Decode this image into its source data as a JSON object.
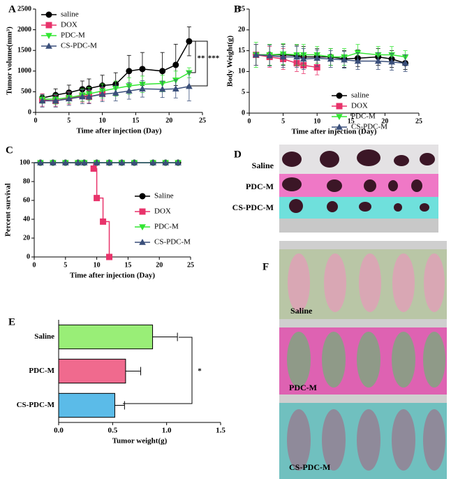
{
  "chart_data": [
    {
      "type": "line",
      "panel": "A",
      "xlabel": "Time after injection (Day)",
      "ylabel": "Tumor volume(mm³)",
      "x": [
        1,
        3,
        5,
        7,
        8,
        10,
        12,
        14,
        16,
        19,
        21,
        23
      ],
      "xlim": [
        0,
        25
      ],
      "xticks": [
        0,
        5,
        10,
        15,
        20,
        25
      ],
      "ylim": [
        0,
        2500
      ],
      "yticks": [
        0,
        500,
        1000,
        1500,
        2000,
        2500
      ],
      "legend": "upper left",
      "annotations": [
        "**",
        "***"
      ],
      "series": [
        {
          "name": "saline",
          "color": "#000000",
          "marker": "circle",
          "values": [
            350,
            420,
            480,
            560,
            580,
            650,
            680,
            1000,
            1050,
            1000,
            1150,
            1720
          ],
          "errors": [
            100,
            150,
            180,
            200,
            230,
            250,
            280,
            380,
            400,
            450,
            500,
            350
          ]
        },
        {
          "name": "DOX",
          "color": "#e8336b",
          "marker": "square",
          "values": [
            300,
            280,
            350,
            400,
            380,
            450,
            null,
            null,
            null,
            null,
            null,
            null
          ],
          "errors": [
            150,
            130,
            150,
            150,
            150,
            150,
            null,
            null,
            null,
            null,
            null,
            null
          ]
        },
        {
          "name": "PDC-M",
          "color": "#33e633",
          "marker": "triangle-down",
          "values": [
            320,
            320,
            360,
            420,
            450,
            520,
            580,
            640,
            680,
            700,
            780,
            960
          ],
          "errors": [
            100,
            120,
            130,
            150,
            150,
            170,
            180,
            200,
            200,
            200,
            220,
            120
          ]
        },
        {
          "name": "CS-PDC-M",
          "color": "#3a4f7a",
          "marker": "triangle-up",
          "values": [
            280,
            280,
            330,
            380,
            380,
            440,
            470,
            520,
            570,
            560,
            570,
            630
          ],
          "errors": [
            150,
            150,
            160,
            170,
            170,
            180,
            190,
            200,
            200,
            200,
            220,
            350
          ]
        }
      ]
    },
    {
      "type": "line",
      "panel": "B",
      "xlabel": "Time after injection (Day)",
      "ylabel": "Body Weight(g)",
      "x": [
        1,
        3,
        5,
        7,
        8,
        10,
        12,
        14,
        16,
        19,
        21,
        23
      ],
      "xlim": [
        0,
        25
      ],
      "xticks": [
        0,
        5,
        10,
        15,
        20,
        25
      ],
      "ylim": [
        0,
        25
      ],
      "yticks": [
        0,
        5,
        10,
        15,
        20,
        25
      ],
      "legend": "lower right",
      "series": [
        {
          "name": "saline",
          "color": "#000000",
          "marker": "circle",
          "values": [
            14,
            14,
            14,
            13.8,
            13.5,
            13.5,
            13.5,
            13,
            13.2,
            13.5,
            13,
            12
          ],
          "errors": [
            2.5,
            2.5,
            2.5,
            2.5,
            2.5,
            2,
            2,
            2,
            2,
            2,
            2,
            1.5
          ]
        },
        {
          "name": "DOX",
          "color": "#e8336b",
          "marker": "square",
          "values": [
            14,
            13.5,
            13,
            12,
            11.5,
            11,
            null,
            null,
            null,
            null,
            null,
            null
          ],
          "errors": [
            2.5,
            2.5,
            2.5,
            2,
            2,
            1.8,
            null,
            null,
            null,
            null,
            null,
            null
          ]
        },
        {
          "name": "PDC-M",
          "color": "#33e633",
          "marker": "triangle-down",
          "values": [
            14,
            14,
            14.2,
            14,
            14,
            14,
            13.5,
            13.5,
            14.5,
            14,
            14,
            13.5
          ],
          "errors": [
            3,
            2.5,
            2.5,
            2.5,
            2.5,
            2,
            2,
            2,
            2,
            2,
            2,
            1.5
          ]
        },
        {
          "name": "CS-PDC-M",
          "color": "#3a4f7a",
          "marker": "triangle-up",
          "values": [
            14,
            13.8,
            13.5,
            13.5,
            13,
            13.2,
            13,
            12.8,
            12.5,
            12.5,
            12.3,
            12
          ],
          "errors": [
            2.5,
            2.5,
            2.5,
            2.5,
            2.5,
            2,
            2,
            2,
            2,
            2,
            2,
            2
          ]
        }
      ]
    },
    {
      "type": "step",
      "panel": "C",
      "xlabel": "Time after injection (Day)",
      "ylabel": "Percent survival",
      "xlim": [
        0,
        25
      ],
      "xticks": [
        0,
        5,
        10,
        15,
        20,
        25
      ],
      "ylim": [
        0,
        100
      ],
      "yticks": [
        0,
        20,
        40,
        60,
        80,
        100
      ],
      "legend": "right",
      "series": [
        {
          "name": "Saline",
          "color": "#000000",
          "marker": "circle",
          "x": [
            0,
            1,
            3,
            5,
            7,
            8,
            10,
            12,
            14,
            16,
            19,
            21,
            23
          ],
          "values": [
            100,
            100,
            100,
            100,
            100,
            100,
            100,
            100,
            100,
            100,
            100,
            100,
            100
          ]
        },
        {
          "name": "DOX",
          "color": "#e8336b",
          "marker": "square",
          "x": [
            0,
            9.5,
            10,
            11,
            12
          ],
          "values": [
            100,
            93.75,
            62.5,
            37.5,
            0
          ]
        },
        {
          "name": "PDC-M",
          "color": "#33e633",
          "marker": "triangle-down",
          "x": [
            0,
            1,
            3,
            5,
            7,
            8,
            10,
            12,
            14,
            16,
            19,
            21,
            23
          ],
          "values": [
            100,
            100,
            100,
            100,
            100,
            100,
            100,
            100,
            100,
            100,
            100,
            100,
            100
          ]
        },
        {
          "name": "CS-PDC-M",
          "color": "#3a4f7a",
          "marker": "triangle-up",
          "x": [
            0,
            1,
            3,
            5,
            7,
            8,
            10,
            12,
            14,
            16,
            19,
            21,
            23
          ],
          "values": [
            100,
            100,
            100,
            100,
            100,
            100,
            100,
            100,
            100,
            100,
            100,
            100,
            100
          ]
        }
      ]
    },
    {
      "type": "barh",
      "panel": "E",
      "xlabel": "Tumor weight(g)",
      "categories": [
        "Saline",
        "PDC-M",
        "CS-PDC-M"
      ],
      "values": [
        0.87,
        0.62,
        0.52
      ],
      "errors": [
        0.23,
        0.14,
        0.09
      ],
      "colors": [
        "#99ee77",
        "#f06a8e",
        "#5bbbe8"
      ],
      "xlim": [
        0,
        1.5
      ],
      "xticks": [
        {
          "value": 0,
          "label": "0.0"
        },
        0.5,
        {
          "value": 1,
          "label": "1.0"
        },
        1.5
      ],
      "annotations": [
        "*"
      ]
    }
  ],
  "photos": [
    {
      "panel": "D",
      "labels": [
        "Saline",
        "PDC-M",
        "CS-PDC-M"
      ]
    },
    {
      "panel": "F",
      "labels": [
        "Saline",
        "PDC-M",
        "CS-PDC-M"
      ]
    }
  ]
}
